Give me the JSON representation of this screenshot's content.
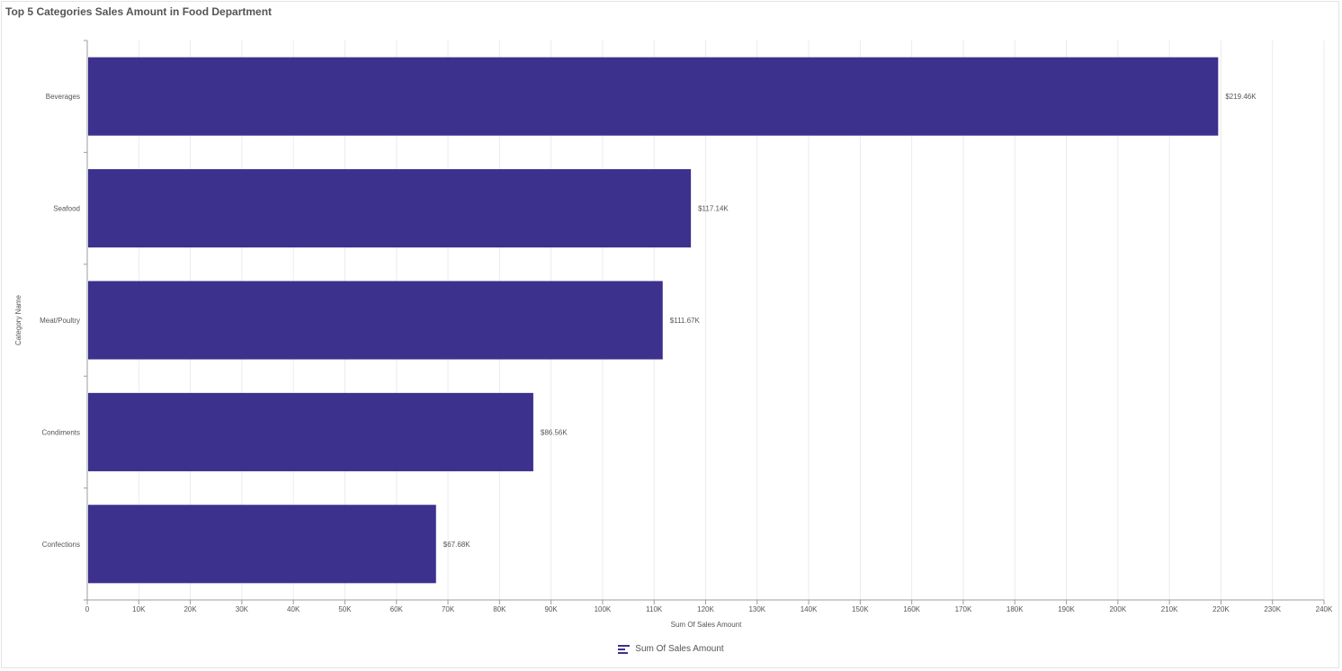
{
  "chart_data": {
    "type": "bar",
    "orientation": "horizontal",
    "title": "Top 5 Categories Sales Amount in Food Department",
    "xlabel": "Sum Of Sales Amount",
    "ylabel": "Category Name",
    "categories": [
      "Beverages",
      "Seafood",
      "Meat/Poultry",
      "Condiments",
      "Confections"
    ],
    "series": [
      {
        "name": "Sum Of Sales Amount",
        "values": [
          219460,
          117140,
          111670,
          86560,
          67680
        ],
        "data_labels": [
          "$219.46K",
          "$117.14K",
          "$111.67K",
          "$86.56K",
          "$67.68K"
        ]
      }
    ],
    "xlim": [
      0,
      240000
    ],
    "x_ticks": [
      0,
      10000,
      20000,
      30000,
      40000,
      50000,
      60000,
      70000,
      80000,
      90000,
      100000,
      110000,
      120000,
      130000,
      140000,
      150000,
      160000,
      170000,
      180000,
      190000,
      200000,
      210000,
      220000,
      230000,
      240000
    ],
    "x_tick_labels": [
      "0",
      "10K",
      "20K",
      "30K",
      "40K",
      "50K",
      "60K",
      "70K",
      "80K",
      "90K",
      "100K",
      "110K",
      "120K",
      "130K",
      "140K",
      "150K",
      "160K",
      "170K",
      "180K",
      "190K",
      "200K",
      "210K",
      "220K",
      "230K",
      "240K"
    ],
    "grid": true,
    "legend_position": "bottom-center",
    "colors": {
      "bar": "#3c318d",
      "grid": "#ebebeb",
      "axis": "#9e9e9e",
      "text": "#555555"
    }
  },
  "legend": {
    "icon": "bar-series-icon",
    "label": "Sum Of Sales Amount"
  }
}
